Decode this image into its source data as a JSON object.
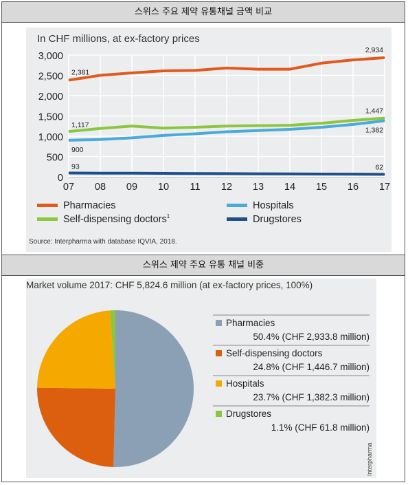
{
  "headers": {
    "top": "스위스 주요 제약 유통채널 금액 비교",
    "bottom": "스위스 제약 주요 유통 채널 비중"
  },
  "chart_data": [
    {
      "type": "line",
      "subtitle": "In CHF millions, at ex-factory prices",
      "x": [
        "07",
        "08",
        "09",
        "10",
        "11",
        "12",
        "13",
        "14",
        "15",
        "16",
        "17"
      ],
      "ylim": [
        0,
        3000
      ],
      "yticks": [
        "3,000",
        "2,500",
        "2,000",
        "1,500",
        "1,000",
        "500",
        "0"
      ],
      "grid": true,
      "series": [
        {
          "name": "Pharmacies",
          "color": "#e05a1e",
          "values": [
            2381,
            2500,
            2560,
            2610,
            2620,
            2680,
            2650,
            2650,
            2800,
            2880,
            2934
          ]
        },
        {
          "name": "Self-dispensing doctors",
          "superscript": "1",
          "color": "#8cc63f",
          "values": [
            1117,
            1190,
            1250,
            1200,
            1220,
            1250,
            1260,
            1270,
            1320,
            1390,
            1447
          ]
        },
        {
          "name": "Hospitals",
          "color": "#4aaad9",
          "values": [
            900,
            920,
            960,
            1020,
            1060,
            1110,
            1140,
            1170,
            1220,
            1290,
            1382
          ]
        },
        {
          "name": "Drugstores",
          "color": "#1f4e8c",
          "values": [
            93,
            90,
            88,
            85,
            80,
            78,
            75,
            72,
            68,
            65,
            62
          ]
        }
      ],
      "annotations": [
        {
          "label": "2,381",
          "x": "07",
          "series": "Pharmacies"
        },
        {
          "label": "2,934",
          "x": "17",
          "series": "Pharmacies"
        },
        {
          "label": "1,117",
          "x": "07",
          "series": "Self-dispensing doctors"
        },
        {
          "label": "1,447",
          "x": "17",
          "series": "Self-dispensing doctors"
        },
        {
          "label": "900",
          "x": "07",
          "series": "Hospitals"
        },
        {
          "label": "1,382",
          "x": "17",
          "series": "Hospitals"
        },
        {
          "label": "93",
          "x": "07",
          "series": "Drugstores"
        },
        {
          "label": "62",
          "x": "17",
          "series": "Drugstores"
        }
      ],
      "legend_position": "bottom",
      "source": "Source: Interpharma with database IQVIA, 2018."
    },
    {
      "type": "pie",
      "title": "Market volume 2017: CHF 5,824.6 million (at ex-factory prices, 100%)",
      "slices": [
        {
          "name": "Pharmacies",
          "value": 50.4,
          "label": "50.4% (CHF 2,933.8 million)",
          "color": "#8ba0b4"
        },
        {
          "name": "Self-dispensing doctors",
          "value": 24.8,
          "label": "24.8% (CHF 1,446.7 million)",
          "color": "#db5f0e"
        },
        {
          "name": "Hospitals",
          "value": 23.7,
          "label": "23.7% (CHF 1,382.3 million)",
          "color": "#f5a800"
        },
        {
          "name": "Drugstores",
          "value": 1.1,
          "label": "1.1% (CHF 61.8 million)",
          "color": "#8cc63f"
        }
      ],
      "legend_position": "right",
      "watermark": "Interpharma"
    }
  ]
}
